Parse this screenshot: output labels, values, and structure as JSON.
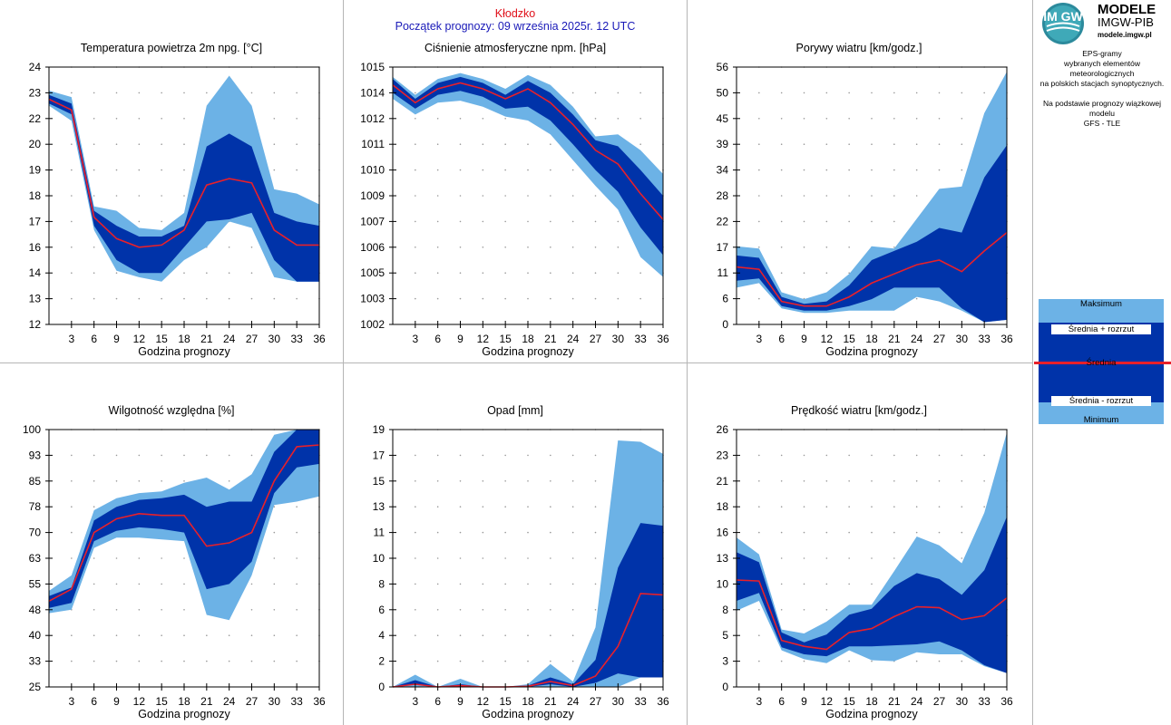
{
  "header": {
    "city": "Kłodzko",
    "start": "Początek prognozy: 09 września 2025r. 12 UTC"
  },
  "logo": {
    "mark": "IM GW",
    "line1": "MODELE",
    "line2": "IMGW-PIB",
    "line3": "modele.imgw.pl"
  },
  "info": {
    "lines": [
      "EPS-gramy",
      "wybranych elementów meteorologicznych",
      "na polskich stacjach  synoptycznych."
    ],
    "model": [
      "Na podstawie prognozy wiązkowej modelu",
      "GFS - TLE"
    ]
  },
  "legend": {
    "max": "Maksimum",
    "plus": "Średnia + rozrzut",
    "mean": "Średnia",
    "minus": "Średnia - rozrzut",
    "min": "Minimum"
  },
  "colors": {
    "outer": "#6cb2e6",
    "inner": "#0033a9",
    "mean": "#e8202a",
    "title_red": "#e0101a",
    "title_blue": "#1a1ab8"
  },
  "chart_data": [
    {
      "type": "area",
      "title": "Temperatura powietrza 2m npg. [°C]",
      "xlabel": "Godzina prognozy",
      "x": [
        0,
        3,
        6,
        9,
        12,
        15,
        18,
        21,
        24,
        27,
        30,
        33,
        36
      ],
      "xticks": [
        "3",
        "6",
        "9",
        "12",
        "15",
        "18",
        "21",
        "24",
        "27",
        "30",
        "33",
        "36"
      ],
      "ylim": [
        12,
        24
      ],
      "yticks": [
        "12",
        "13",
        "14",
        "16",
        "17",
        "18",
        "19",
        "20",
        "22",
        "23",
        "24"
      ],
      "min": [
        22.2,
        21.5,
        16.4,
        14.5,
        14.2,
        14.0,
        15.0,
        15.6,
        16.8,
        16.5,
        14.2,
        14.0,
        14.0
      ],
      "minus": [
        22.3,
        21.8,
        16.6,
        15.0,
        14.4,
        14.4,
        15.6,
        16.8,
        16.9,
        17.2,
        15.0,
        14.0,
        14.0
      ],
      "mean": [
        22.5,
        22.0,
        17.0,
        16.0,
        15.6,
        15.7,
        16.4,
        18.5,
        18.8,
        18.6,
        16.4,
        15.7,
        15.7
      ],
      "plus": [
        22.7,
        22.3,
        17.3,
        16.6,
        16.1,
        16.1,
        16.6,
        20.3,
        20.9,
        20.3,
        17.2,
        16.8,
        16.6
      ],
      "max": [
        22.9,
        22.6,
        17.5,
        17.3,
        16.5,
        16.4,
        17.2,
        22.2,
        23.6,
        22.2,
        18.3,
        18.1,
        17.6
      ]
    },
    {
      "type": "area",
      "title": "Ciśnienie atmosferyczne npm. [hPa]",
      "xlabel": "Godzina prognozy",
      "x": [
        0,
        3,
        6,
        9,
        12,
        15,
        18,
        21,
        24,
        27,
        30,
        33,
        36
      ],
      "xticks": [
        "3",
        "6",
        "9",
        "12",
        "15",
        "18",
        "21",
        "24",
        "27",
        "30",
        "33",
        "36"
      ],
      "ylim": [
        1002,
        1015
      ],
      "yticks": [
        "1002",
        "1003",
        "1005",
        "1006",
        "1007",
        "1009",
        "1010",
        "1011",
        "1012",
        "1014",
        "1015"
      ],
      "min": [
        1013.4,
        1012.6,
        1013.2,
        1013.3,
        1013.0,
        1012.5,
        1012.3,
        1011.6,
        1010.3,
        1009.0,
        1007.8,
        1005.4,
        1004.4
      ],
      "minus": [
        1013.7,
        1012.9,
        1013.6,
        1013.8,
        1013.5,
        1012.9,
        1013.0,
        1012.3,
        1011.1,
        1009.8,
        1008.7,
        1006.9,
        1005.5
      ],
      "mean": [
        1014.1,
        1013.2,
        1013.9,
        1014.2,
        1013.9,
        1013.4,
        1013.9,
        1013.2,
        1012.1,
        1010.8,
        1010.1,
        1008.6,
        1007.3
      ],
      "plus": [
        1014.4,
        1013.4,
        1014.2,
        1014.5,
        1014.2,
        1013.6,
        1014.3,
        1013.7,
        1012.6,
        1011.3,
        1011.0,
        1009.8,
        1008.5
      ],
      "max": [
        1014.5,
        1013.6,
        1014.4,
        1014.7,
        1014.4,
        1013.9,
        1014.6,
        1014.1,
        1013.0,
        1011.5,
        1011.6,
        1010.8,
        1009.6
      ]
    },
    {
      "type": "area",
      "title": "Porywy wiatru [km/godz.]",
      "xlabel": "Godzina prognozy",
      "x": [
        0,
        3,
        6,
        9,
        12,
        15,
        18,
        21,
        24,
        27,
        30,
        33,
        36
      ],
      "xticks": [
        "3",
        "6",
        "9",
        "12",
        "15",
        "18",
        "21",
        "24",
        "27",
        "30",
        "33",
        "36"
      ],
      "ylim": [
        0,
        56
      ],
      "yticks": [
        "0",
        "6",
        "11",
        "17",
        "22",
        "28",
        "34",
        "39",
        "45",
        "50",
        "56"
      ],
      "min": [
        8.0,
        9.0,
        3.5,
        2.5,
        2.5,
        3.0,
        3.0,
        3.0,
        6.0,
        5.0,
        3.0,
        0.5,
        1.0
      ],
      "minus": [
        9.5,
        10.0,
        4.0,
        3.0,
        3.0,
        4.0,
        5.5,
        8.0,
        8.0,
        8.0,
        3.5,
        0.5,
        1.0
      ],
      "mean": [
        12.5,
        12.0,
        5.0,
        4.0,
        4.0,
        6.0,
        9.0,
        11.0,
        13.0,
        14.0,
        11.5,
        16.0,
        20.0
      ],
      "plus": [
        15.0,
        14.5,
        6.0,
        4.5,
        5.0,
        8.5,
        14.0,
        16.0,
        18.0,
        21.0,
        20.0,
        32.0,
        39.0
      ],
      "max": [
        17.0,
        16.5,
        7.0,
        5.5,
        7.0,
        11.0,
        17.0,
        16.5,
        23.0,
        29.5,
        30.0,
        46.0,
        55.0
      ]
    },
    {
      "type": "area",
      "title": "Wilgotność względna [%]",
      "xlabel": "Godzina prognozy",
      "x": [
        0,
        3,
        6,
        9,
        12,
        15,
        18,
        21,
        24,
        27,
        30,
        33,
        36
      ],
      "xticks": [
        "3",
        "6",
        "9",
        "12",
        "15",
        "18",
        "21",
        "24",
        "27",
        "30",
        "33",
        "36"
      ],
      "ylim": [
        25,
        100
      ],
      "yticks": [
        "25",
        "33",
        "40",
        "48",
        "55",
        "63",
        "70",
        "78",
        "85",
        "93",
        "100"
      ],
      "min": [
        46.5,
        47.5,
        65.5,
        68.5,
        68.5,
        68.0,
        67.5,
        46.0,
        44.5,
        57.5,
        78.0,
        79.0,
        80.5
      ],
      "minus": [
        48.0,
        49.5,
        67.5,
        70.5,
        71.5,
        71.0,
        70.0,
        53.5,
        55.0,
        61.5,
        81.5,
        89.0,
        90.0
      ],
      "mean": [
        50.0,
        53.5,
        70.0,
        74.0,
        75.5,
        75.0,
        75.0,
        66.0,
        67.0,
        70.0,
        85.0,
        95.0,
        95.5
      ],
      "plus": [
        51.5,
        54.0,
        73.5,
        77.5,
        79.5,
        80.0,
        81.0,
        77.5,
        79.0,
        79.0,
        93.5,
        100.0,
        100.0
      ],
      "max": [
        53.0,
        57.5,
        76.5,
        80.0,
        81.5,
        82.0,
        84.5,
        86.0,
        82.5,
        87.0,
        98.5,
        100.0,
        100.0
      ]
    },
    {
      "type": "area",
      "title": "Opad [mm]",
      "xlabel": "Godzina prognozy",
      "x": [
        0,
        3,
        6,
        9,
        12,
        15,
        18,
        21,
        24,
        27,
        30,
        33,
        36
      ],
      "xticks": [
        "3",
        "6",
        "9",
        "12",
        "15",
        "18",
        "21",
        "24",
        "27",
        "30",
        "33",
        "36"
      ],
      "ylim": [
        0,
        19
      ],
      "yticks": [
        "0",
        "2",
        "4",
        "6",
        "8",
        "10",
        "11",
        "13",
        "15",
        "17",
        "19"
      ],
      "min": [
        0,
        0,
        0,
        0,
        0,
        0,
        0,
        0,
        0,
        0,
        0,
        0.7,
        0.7
      ],
      "minus": [
        0,
        0.2,
        0,
        0,
        0,
        0,
        0,
        0.2,
        0,
        0.3,
        1.0,
        0.7,
        0.7
      ],
      "mean": [
        0,
        0.2,
        0,
        0.1,
        0,
        0,
        0.05,
        0.4,
        0.1,
        0.8,
        3.0,
        6.9,
        6.8
      ],
      "plus": [
        0,
        0.5,
        0,
        0.2,
        0,
        0,
        0.1,
        0.7,
        0.2,
        2.0,
        8.8,
        12.1,
        11.9
      ],
      "max": [
        0,
        0.9,
        0,
        0.6,
        0,
        0,
        0.2,
        1.7,
        0.4,
        4.4,
        18.2,
        18.1,
        17.2
      ]
    },
    {
      "type": "area",
      "title": "Prędkość wiatru [km/godz.]",
      "xlabel": "Godzina prognozy",
      "x": [
        0,
        3,
        6,
        9,
        12,
        15,
        18,
        21,
        24,
        27,
        30,
        33,
        36
      ],
      "xticks": [
        "3",
        "6",
        "9",
        "12",
        "15",
        "18",
        "21",
        "24",
        "27",
        "30",
        "33",
        "36"
      ],
      "ylim": [
        0,
        26
      ],
      "yticks": [
        "0",
        "3",
        "5",
        "8",
        "10",
        "13",
        "16",
        "18",
        "21",
        "23",
        "26"
      ],
      "min": [
        7.7,
        8.7,
        3.7,
        2.8,
        2.4,
        3.7,
        2.7,
        2.6,
        3.5,
        3.3,
        3.3,
        2.1,
        1.4
      ],
      "minus": [
        8.7,
        9.5,
        4.0,
        3.3,
        3.1,
        4.1,
        4.1,
        4.2,
        4.3,
        4.6,
        3.7,
        2.2,
        1.4
      ],
      "mean": [
        10.8,
        10.7,
        4.7,
        4.1,
        3.8,
        5.5,
        5.9,
        7.1,
        8.1,
        8.0,
        6.8,
        7.2,
        9.0
      ],
      "plus": [
        13.6,
        12.6,
        5.5,
        4.5,
        5.3,
        7.3,
        7.9,
        10.2,
        11.5,
        10.9,
        9.3,
        11.8,
        17.2
      ],
      "max": [
        15.1,
        13.4,
        5.8,
        5.4,
        6.6,
        8.3,
        8.3,
        11.7,
        15.2,
        14.3,
        12.5,
        17.6,
        25.7
      ]
    }
  ]
}
